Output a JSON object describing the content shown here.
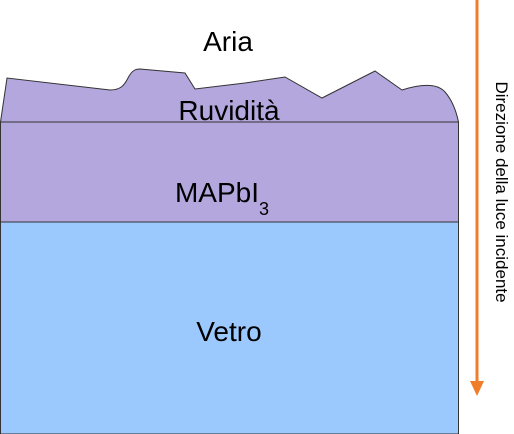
{
  "labels": {
    "air": "Aria",
    "roughness": "Ruvidità",
    "perovskite_main": "MAPbI",
    "perovskite_subscript": "3",
    "glass": "Vetro",
    "light_direction": "Direzione della luce incidente"
  },
  "colors": {
    "background": "#ffffff",
    "roughness_fill": "#b4a7de",
    "perovskite_fill": "#b4a7de",
    "glass_fill": "#9cc9fd",
    "outline": "#333333",
    "arrow": "#f07d2b",
    "text": "#000000"
  },
  "icons": {
    "arrow": "arrow-down-icon"
  }
}
